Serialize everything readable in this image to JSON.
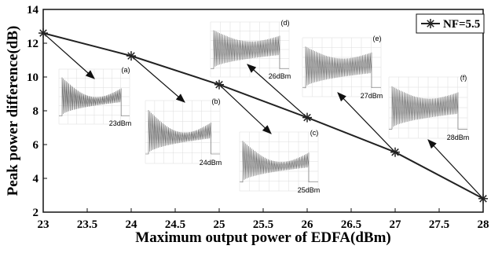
{
  "chart_data": {
    "type": "line",
    "xlabel": "Maximum output power of EDFA(dBm)",
    "ylabel": "Peak power difference(dB)",
    "x": [
      23,
      24,
      25,
      26,
      27,
      28
    ],
    "series": [
      {
        "name": "NF=5.5",
        "color": "#222222",
        "values": [
          12.6,
          11.25,
          9.55,
          7.6,
          5.55,
          2.8
        ]
      }
    ],
    "xlim": [
      23,
      28
    ],
    "xticks": [
      23,
      23.5,
      24,
      24.5,
      25,
      25.5,
      26,
      26.5,
      27,
      27.5,
      28
    ],
    "ylim": [
      2,
      14
    ],
    "yticks": [
      2,
      4,
      6,
      8,
      10,
      12,
      14
    ],
    "legend": "upper right",
    "annotations": [
      {
        "label": "(a)",
        "power": "23dBm"
      },
      {
        "label": "(b)",
        "power": "24dBm"
      },
      {
        "label": "(c)",
        "power": "25dBm"
      },
      {
        "label": "(d)",
        "power": "26dBm"
      },
      {
        "label": "(e)",
        "power": "27dBm"
      },
      {
        "label": "(f)",
        "power": "28dBm"
      }
    ]
  }
}
